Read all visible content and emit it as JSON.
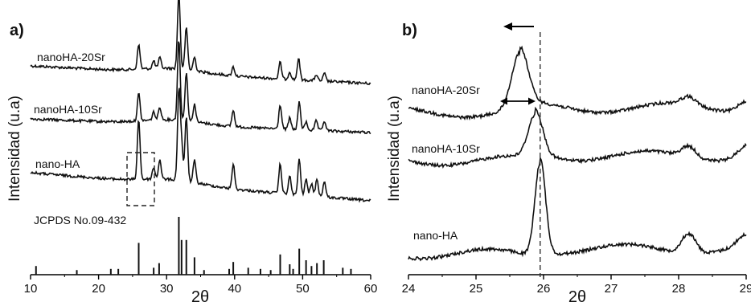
{
  "chart_data": [
    {
      "panel_label": "a)",
      "type": "line",
      "xlabel": "2θ",
      "ylabel": "Intensidad (u.a)",
      "xlim": [
        10,
        60
      ],
      "xticks": [
        "10",
        "20",
        "30",
        "40",
        "50",
        "60"
      ],
      "series": [
        {
          "name": "nanoHA-20Sr",
          "peaks": [
            [
              25.9,
              0.32
            ],
            [
              28.1,
              0.1
            ],
            [
              29.0,
              0.14
            ],
            [
              31.8,
              1.0
            ],
            [
              32.9,
              0.55
            ],
            [
              34.1,
              0.18
            ],
            [
              39.8,
              0.12
            ],
            [
              46.7,
              0.22
            ],
            [
              48.1,
              0.1
            ],
            [
              49.4,
              0.28
            ],
            [
              52.0,
              0.08
            ],
            [
              53.2,
              0.1
            ]
          ]
        },
        {
          "name": "nanoHA-10Sr",
          "peaks": [
            [
              25.9,
              0.34
            ],
            [
              28.1,
              0.1
            ],
            [
              29.0,
              0.16
            ],
            [
              31.8,
              1.0
            ],
            [
              32.9,
              0.6
            ],
            [
              34.1,
              0.22
            ],
            [
              39.8,
              0.2
            ],
            [
              46.7,
              0.3
            ],
            [
              48.1,
              0.14
            ],
            [
              49.5,
              0.34
            ],
            [
              50.5,
              0.1
            ],
            [
              52.0,
              0.12
            ],
            [
              53.2,
              0.12
            ]
          ]
        },
        {
          "name": "nano-HA",
          "peaks": [
            [
              25.9,
              0.68
            ],
            [
              28.1,
              0.13
            ],
            [
              29.0,
              0.22
            ],
            [
              31.8,
              1.0
            ],
            [
              32.2,
              0.4
            ],
            [
              32.9,
              0.72
            ],
            [
              34.1,
              0.25
            ],
            [
              39.8,
              0.28
            ],
            [
              46.7,
              0.33
            ],
            [
              48.1,
              0.2
            ],
            [
              49.5,
              0.4
            ],
            [
              50.5,
              0.18
            ],
            [
              51.3,
              0.14
            ],
            [
              52.1,
              0.2
            ],
            [
              53.2,
              0.18
            ]
          ]
        }
      ],
      "reference": {
        "name": "JCPDS No.09-432",
        "lines": [
          [
            10.8,
            0.15
          ],
          [
            16.8,
            0.08
          ],
          [
            21.8,
            0.1
          ],
          [
            22.9,
            0.1
          ],
          [
            25.9,
            0.55
          ],
          [
            28.1,
            0.12
          ],
          [
            28.9,
            0.2
          ],
          [
            31.8,
            1.0
          ],
          [
            32.2,
            0.6
          ],
          [
            32.9,
            0.6
          ],
          [
            34.1,
            0.3
          ],
          [
            35.5,
            0.08
          ],
          [
            39.2,
            0.1
          ],
          [
            39.8,
            0.22
          ],
          [
            42.0,
            0.12
          ],
          [
            43.8,
            0.1
          ],
          [
            45.3,
            0.08
          ],
          [
            46.7,
            0.35
          ],
          [
            48.1,
            0.18
          ],
          [
            48.6,
            0.1
          ],
          [
            49.5,
            0.45
          ],
          [
            50.5,
            0.25
          ],
          [
            51.3,
            0.15
          ],
          [
            52.1,
            0.2
          ],
          [
            53.1,
            0.25
          ],
          [
            55.9,
            0.12
          ],
          [
            57.1,
            0.1
          ]
        ]
      }
    },
    {
      "panel_label": "b)",
      "type": "line",
      "xlabel": "2θ",
      "ylabel": "Intensidad (u.a)",
      "xlim": [
        24,
        29
      ],
      "xticks": [
        "24",
        "25",
        "26",
        "27",
        "28",
        "29"
      ],
      "reference_line_x": 25.95,
      "series": [
        {
          "name": "nanoHA-20Sr",
          "peak_x": 25.65
        },
        {
          "name": "nanoHA-10Sr",
          "peak_x": 25.88
        },
        {
          "name": "nano-HA",
          "peak_x": 25.95
        }
      ]
    }
  ]
}
